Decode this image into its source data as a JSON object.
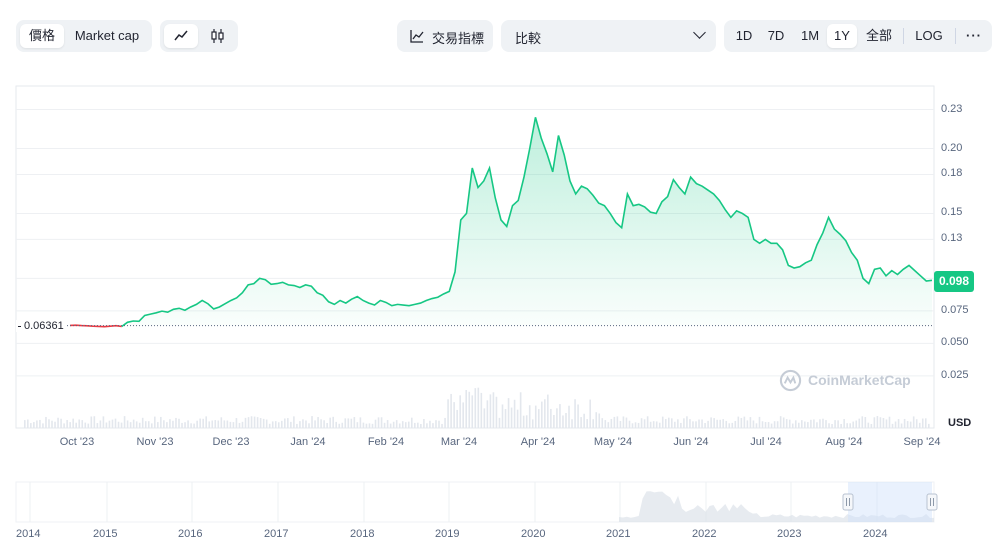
{
  "toolbar": {
    "type_tabs": [
      "價格",
      "Market cap"
    ],
    "indicators_label": "交易指標",
    "compare_label": "比較",
    "ranges": [
      "1D",
      "7D",
      "1M",
      "1Y",
      "全部"
    ],
    "active_range": "1Y",
    "log_label": "LOG",
    "more_label": "···"
  },
  "watermark": "CoinMarketCap",
  "currency_label": "USD",
  "chart_data": {
    "type": "line",
    "y_ticks": [
      "0.23",
      "0.20",
      "0.18",
      "0.15",
      "0.13",
      "0.10",
      "0.075",
      "0.050",
      "0.025"
    ],
    "x_ticks": [
      "Oct '23",
      "Nov '23",
      "Dec '23",
      "Jan '24",
      "Feb '24",
      "Mar '24",
      "Apr '24",
      "May '24",
      "Jun '24",
      "Jul '24",
      "Aug '24",
      "Sep '24"
    ],
    "ylim": [
      0,
      0.25
    ],
    "reference_price": "0.06361",
    "current_price": "0.098",
    "series": [
      {
        "values": [
          0.0638,
          0.064,
          0.0637,
          0.0635,
          0.0632,
          0.063,
          0.0628,
          0.0632,
          0.0636,
          0.063,
          0.0662,
          0.0672,
          0.067,
          0.0715,
          0.0725,
          0.0735,
          0.0748,
          0.074,
          0.0762,
          0.077,
          0.0755,
          0.078,
          0.08,
          0.083,
          0.0805,
          0.0765,
          0.078,
          0.0805,
          0.083,
          0.085,
          0.089,
          0.095,
          0.096,
          0.1,
          0.099,
          0.0955,
          0.096,
          0.097,
          0.095,
          0.0945,
          0.093,
          0.095,
          0.094,
          0.089,
          0.087,
          0.082,
          0.08,
          0.083,
          0.081,
          0.084,
          0.086,
          0.083,
          0.081,
          0.0795,
          0.083,
          0.0815,
          0.079,
          0.08,
          0.0795,
          0.079,
          0.08,
          0.081,
          0.083,
          0.0845,
          0.0855,
          0.088,
          0.09,
          0.105,
          0.145,
          0.15,
          0.185,
          0.17,
          0.175,
          0.185,
          0.162,
          0.145,
          0.14,
          0.156,
          0.16,
          0.178,
          0.2,
          0.224,
          0.208,
          0.196,
          0.182,
          0.21,
          0.195,
          0.175,
          0.165,
          0.171,
          0.169,
          0.164,
          0.158,
          0.156,
          0.15,
          0.143,
          0.139,
          0.165,
          0.156,
          0.157,
          0.155,
          0.151,
          0.15,
          0.159,
          0.163,
          0.176,
          0.17,
          0.165,
          0.178,
          0.173,
          0.171,
          0.168,
          0.165,
          0.16,
          0.153,
          0.147,
          0.152,
          0.15,
          0.147,
          0.13,
          0.127,
          0.13,
          0.127,
          0.127,
          0.122,
          0.11,
          0.108,
          0.109,
          0.112,
          0.114,
          0.126,
          0.135,
          0.147,
          0.138,
          0.134,
          0.129,
          0.12,
          0.114,
          0.1,
          0.096,
          0.107,
          0.108,
          0.102,
          0.106,
          0.103,
          0.107,
          0.11,
          0.106,
          0.102,
          0.098,
          0.0985
        ]
      }
    ],
    "navigator": {
      "x_ticks": [
        "2014",
        "2015",
        "2016",
        "2017",
        "2018",
        "2019",
        "2020",
        "2021",
        "2022",
        "2023",
        "2024"
      ]
    }
  }
}
